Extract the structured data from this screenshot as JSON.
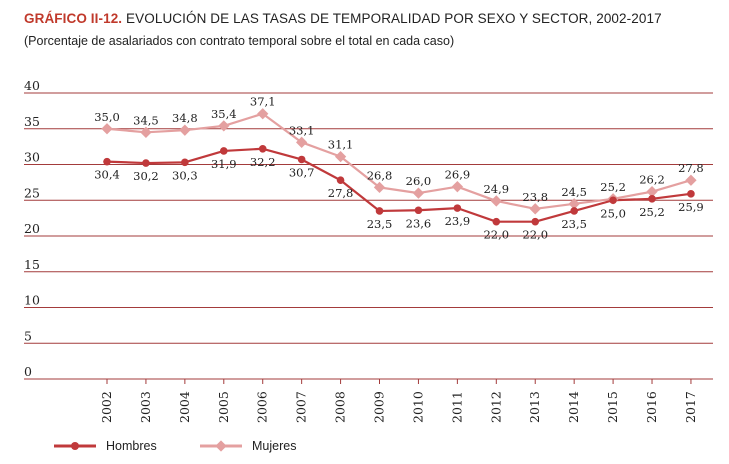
{
  "header": {
    "tag": "GRÁFICO II-12.",
    "title": "EVOLUCIÓN DE LAS TASAS DE TEMPORALIDAD POR SEXO Y SECTOR, 2002-2017",
    "subtitle": "(Porcentaje de asalariados con contrato temporal sobre el total en cada caso)"
  },
  "colors": {
    "hombres": "#c0393b",
    "mujeres": "#e4a0a0",
    "grid": "#a33b3b"
  },
  "chart_data": {
    "type": "line",
    "title": "EVOLUCIÓN DE LAS TASAS DE TEMPORALIDAD POR SEXO Y SECTOR, 2002-2017",
    "subtitle": "(Porcentaje de asalariados con contrato temporal sobre el total en cada caso)",
    "categories": [
      "2002",
      "2003",
      "2004",
      "2005",
      "2006",
      "2007",
      "2008",
      "2009",
      "2010",
      "2011",
      "2012",
      "2013",
      "2014",
      "2015",
      "2016",
      "2017"
    ],
    "yticks": [
      "0",
      "5",
      "10",
      "15",
      "20",
      "25",
      "30",
      "35",
      "40"
    ],
    "ylim": [
      0,
      40
    ],
    "grid": true,
    "legend_position": "bottom-left",
    "series": [
      {
        "name": "Hombres",
        "values": [
          30.4,
          30.2,
          30.3,
          31.9,
          32.2,
          30.7,
          27.8,
          23.5,
          23.6,
          23.9,
          22.0,
          22.0,
          23.5,
          25.0,
          25.2,
          25.9
        ],
        "labels": [
          "30,4",
          "30,2",
          "30,3",
          "31,9",
          "32,2",
          "30,7",
          "27,8",
          "23,5",
          "23,6",
          "23,9",
          "22,0",
          "22,0",
          "23,5",
          "25,0",
          "25,2",
          "25,9"
        ]
      },
      {
        "name": "Mujeres",
        "values": [
          35.0,
          34.5,
          34.8,
          35.4,
          37.1,
          33.1,
          31.1,
          26.8,
          26.0,
          26.9,
          24.9,
          23.8,
          24.5,
          25.2,
          26.2,
          27.8
        ],
        "labels": [
          "35,0",
          "34,5",
          "34,8",
          "35,4",
          "37,1",
          "33,1",
          "31,1",
          "26,8",
          "26,0",
          "26,9",
          "24,9",
          "23,8",
          "24,5",
          "25,2",
          "26,2",
          "27,8"
        ]
      }
    ]
  }
}
